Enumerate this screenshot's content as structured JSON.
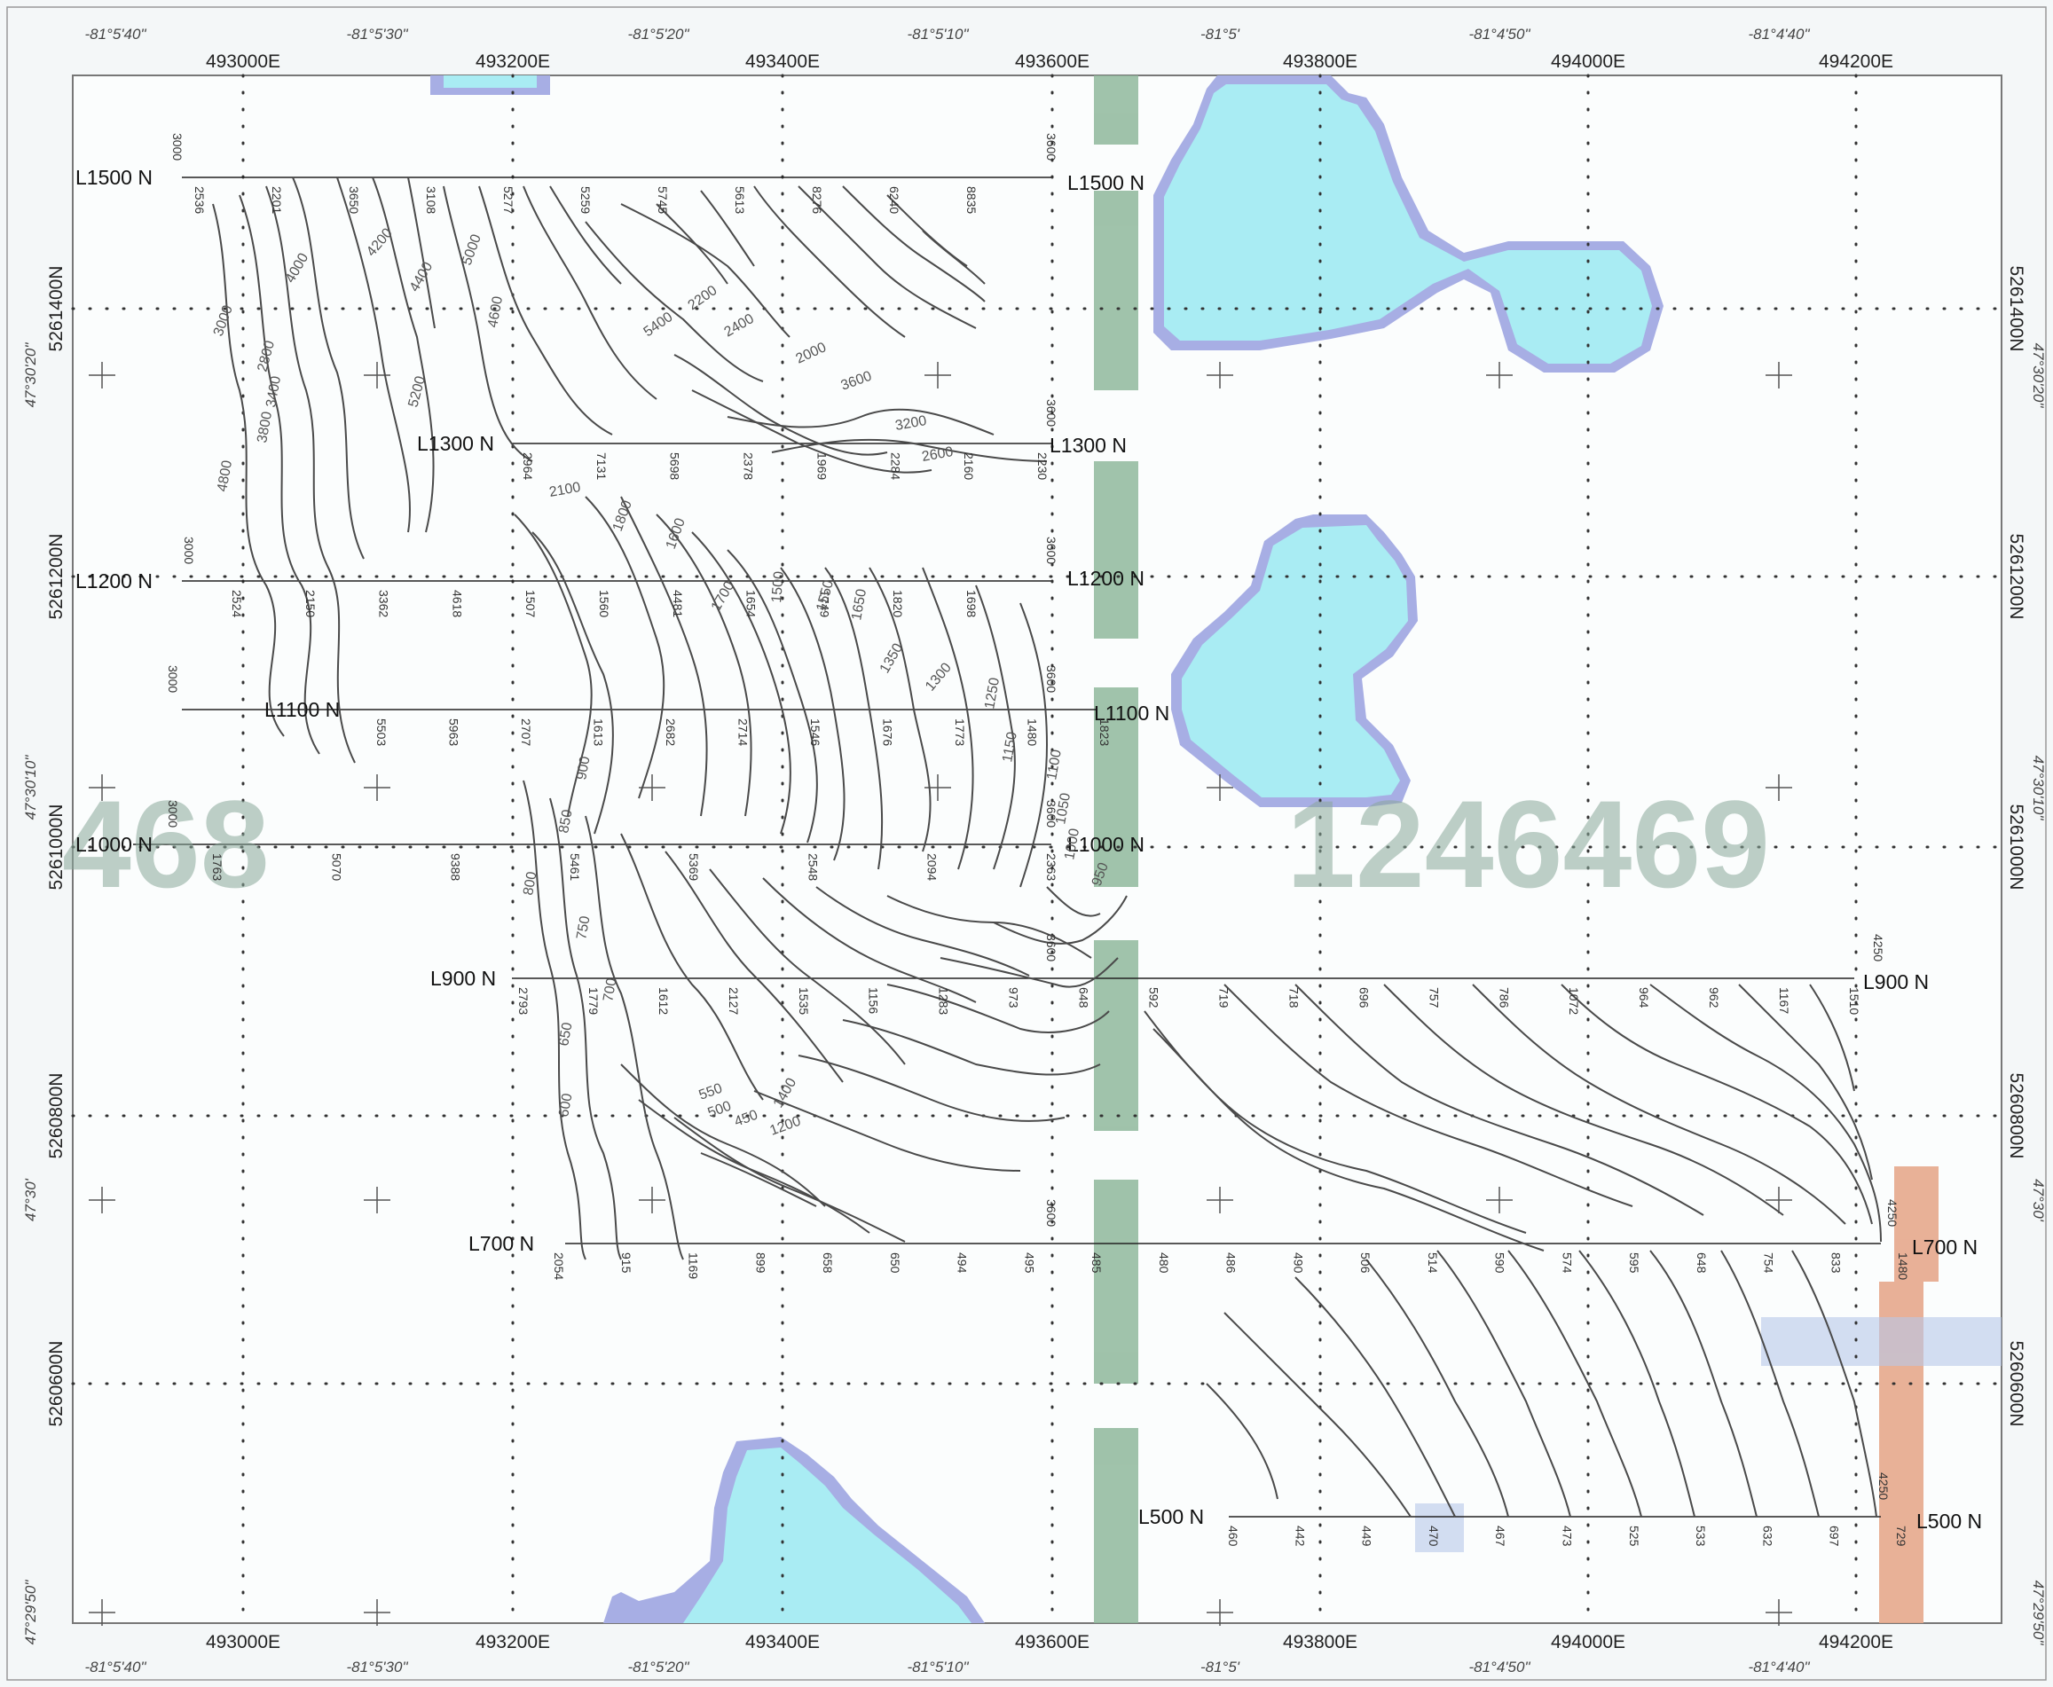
{
  "map": {
    "easting_labels": [
      "493000E",
      "493200E",
      "493400E",
      "493600E",
      "493800E",
      "494000E",
      "494200E"
    ],
    "northing_labels": [
      "5261400N",
      "5261200N",
      "5261000N",
      "5260800N",
      "5260600N"
    ],
    "longitude_labels": [
      "-81°5'40\"",
      "-81°5'30\"",
      "-81°5'20\"",
      "-81°5'10\"",
      "-81°5'",
      "-81°4'50\"",
      "-81°4'40\""
    ],
    "latitude_labels": [
      "47°30'20\"",
      "47°30'10\"",
      "47°30'",
      "47°29'50\""
    ],
    "claim_numbers": [
      "468",
      "1246469"
    ],
    "colors": {
      "water": "#a9ecf3",
      "water_edge": "#a7aee4",
      "claim_strip": "#8fb89c",
      "orange": "#e6a88c",
      "contour": "#4a4a4a",
      "background": "#f4f7f8"
    },
    "lines": [
      {
        "label": "L1500 N",
        "right_label": "L1500 N",
        "stations": [
          "2536",
          "2201",
          "3650",
          "3108",
          "5277",
          "5259",
          "5745",
          "5613",
          "8276",
          "6240",
          "8835"
        ],
        "end_values": [
          "3000",
          "3600"
        ]
      },
      {
        "label": "L1300 N",
        "right_label": "L1300 N",
        "stations": [
          "2964",
          "7131",
          "5698",
          "2378",
          "1969",
          "2284",
          "2160",
          "2230"
        ],
        "end_values": [
          "3600"
        ]
      },
      {
        "label": "L1200 N",
        "right_label": "L1200 N",
        "stations": [
          "2524",
          "2150",
          "3362",
          "4618",
          "1507",
          "1560",
          "4481",
          "1654",
          "1749",
          "1820",
          "1698"
        ],
        "end_values": [
          "3000",
          "3600"
        ]
      },
      {
        "label": "L1100 N",
        "right_label": "L1100 N",
        "stations": [
          "5503",
          "5963",
          "2707",
          "1613",
          "2682",
          "2714",
          "1546",
          "1676",
          "1773",
          "1480",
          "1823"
        ],
        "end_values": [
          "3000",
          "3600"
        ]
      },
      {
        "label": "L1000 N",
        "right_label": "L1000 N",
        "stations": [
          "1763",
          "5070",
          "9388",
          "5461",
          "5369",
          "2548",
          "2094",
          "2363"
        ],
        "end_values": [
          "3000",
          "3600"
        ]
      },
      {
        "label": "L900 N",
        "right_label": "L900 N",
        "stations": [
          "2793",
          "1779",
          "1612",
          "2127",
          "1535",
          "1156",
          "1283",
          "973",
          "648",
          "592",
          "719",
          "718",
          "696",
          "757",
          "786",
          "1072",
          "964",
          "962",
          "1167",
          "1510"
        ],
        "end_values": [
          "3600",
          "4250"
        ]
      },
      {
        "label": "L700 N",
        "right_label": "L700 N",
        "stations": [
          "2054",
          "915",
          "1169",
          "899",
          "658",
          "650",
          "494",
          "495",
          "485",
          "480",
          "486",
          "490",
          "506",
          "514",
          "590",
          "574",
          "595",
          "648",
          "754",
          "833",
          "1480"
        ],
        "end_values": [
          "3600",
          "4250"
        ]
      },
      {
        "label": "L500 N",
        "right_label": "L500 N",
        "stations": [
          "460",
          "442",
          "449",
          "470",
          "467",
          "473",
          "525",
          "533",
          "632",
          "697",
          "729"
        ],
        "end_values": [
          "4250"
        ]
      }
    ],
    "contour_labels": [
      "3000",
      "4000",
      "4200",
      "4400",
      "4600",
      "5000",
      "5200",
      "3400",
      "3800",
      "2800",
      "4800",
      "5400",
      "2200",
      "2400",
      "2000",
      "3600",
      "3200",
      "2600",
      "2100",
      "1800",
      "1600",
      "1700",
      "1500",
      "1550",
      "1650",
      "1350",
      "1300",
      "1250",
      "1150",
      "1100",
      "1050",
      "1000",
      "950",
      "900",
      "850",
      "800",
      "750",
      "700",
      "650",
      "600",
      "550",
      "500",
      "450",
      "1200",
      "1400"
    ]
  }
}
